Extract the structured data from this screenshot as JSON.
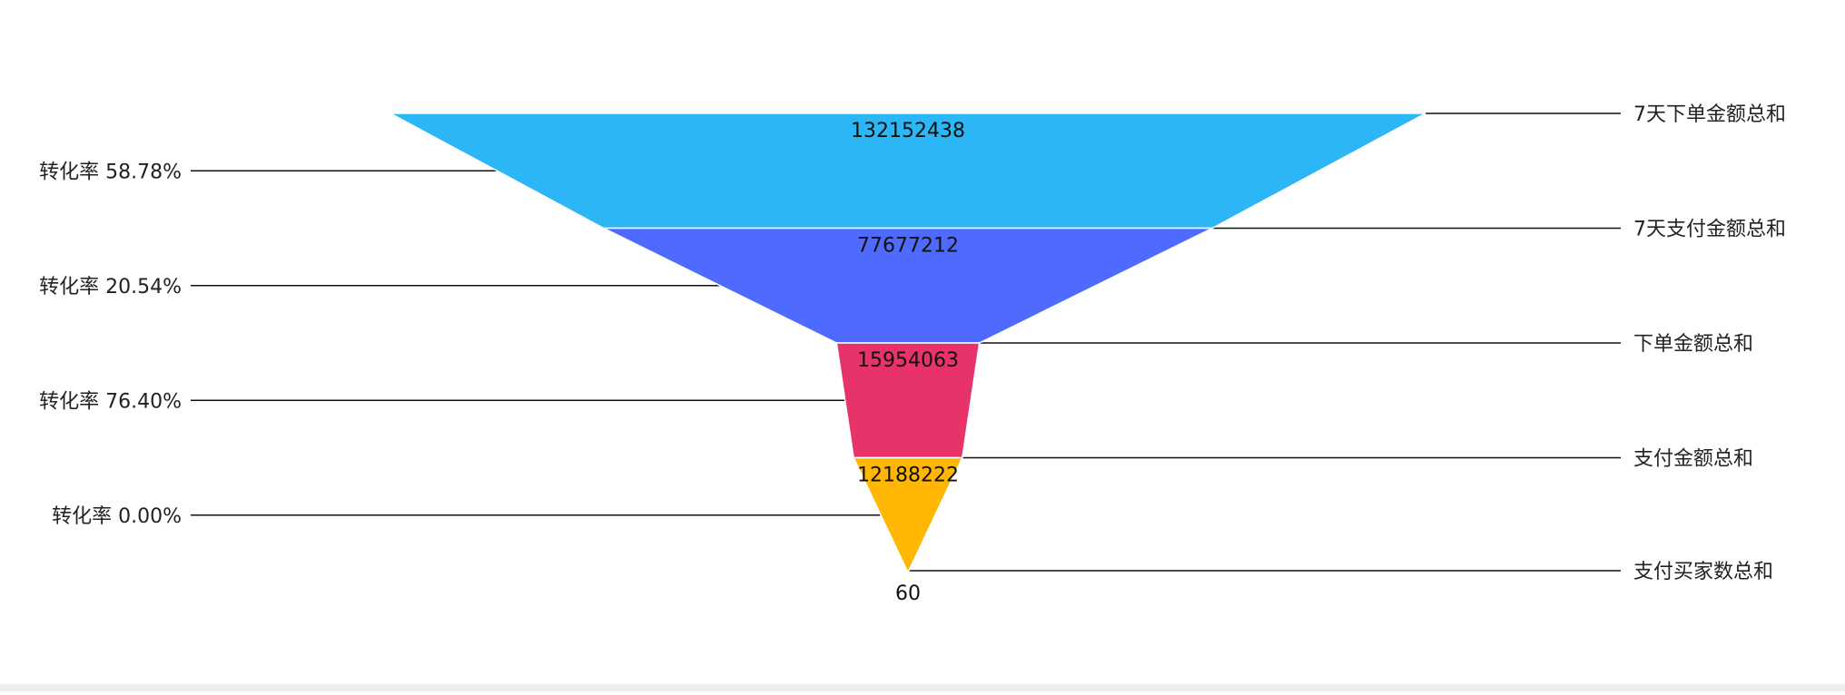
{
  "chart_data": {
    "type": "funnel",
    "title": "",
    "stages": [
      {
        "name": "7天下单金额总和",
        "value": 132152438,
        "color": "#2db6f5"
      },
      {
        "name": "7天支付金额总和",
        "value": 77677212,
        "color": "#4f6aff"
      },
      {
        "name": "下单金额总和",
        "value": 15954063,
        "color": "#e8336a"
      },
      {
        "name": "支付金额总和",
        "value": 12188222,
        "color": "#ffb703"
      },
      {
        "name": "支付买家数总和",
        "value": 60,
        "color": "#ffb703"
      }
    ],
    "conversion_labels": [
      "转化率 58.78%",
      "转化率 20.54%",
      "转化率 76.40%",
      "转化率 0.00%"
    ],
    "legend_position": "right"
  }
}
